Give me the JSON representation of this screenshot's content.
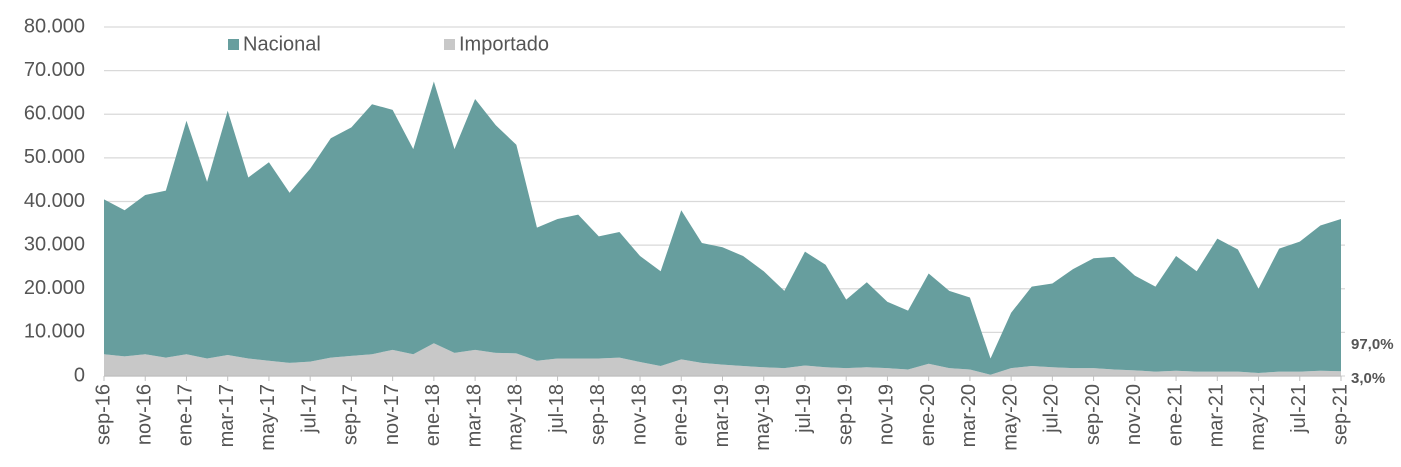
{
  "chart_data": {
    "type": "stacked_area",
    "categories": [
      "sep-16",
      null,
      "nov-16",
      null,
      "ene-17",
      null,
      "mar-17",
      null,
      "may-17",
      null,
      "jul-17",
      null,
      "sep-17",
      null,
      "nov-17",
      null,
      "ene-18",
      null,
      "mar-18",
      null,
      "may-18",
      null,
      "jul-18",
      null,
      "sep-18",
      null,
      "nov-18",
      null,
      "ene-19",
      null,
      "mar-19",
      null,
      "may-19",
      null,
      "jul-19",
      null,
      "sep-19",
      null,
      "nov-19",
      null,
      "ene-20",
      null,
      "mar-20",
      null,
      "may-20",
      null,
      "jul-20",
      null,
      "sep-20",
      null,
      "nov-20",
      null,
      "ene-21",
      null,
      "mar-21",
      null,
      "may-21",
      null,
      "jul-21",
      null,
      "sep-21"
    ],
    "series": [
      {
        "name": "Nacional",
        "color": "#679e9e",
        "end_label": "97,0%",
        "values": [
          35500,
          33500,
          36500,
          38300,
          53500,
          40500,
          56000,
          41500,
          45500,
          39000,
          44200,
          50300,
          52400,
          57300,
          55000,
          47000,
          60000,
          46700,
          57500,
          52200,
          47800,
          30500,
          32000,
          33000,
          28000,
          28800,
          24300,
          21700,
          34200,
          27500,
          26900,
          25200,
          22000,
          17700,
          26100,
          23500,
          15700,
          19500,
          15200,
          13500,
          20700,
          17700,
          16500,
          3700,
          12700,
          18200,
          19200,
          22700,
          25200,
          25800,
          21700,
          19500,
          26300,
          23000,
          30500,
          28000,
          19300,
          28200,
          29800,
          33300,
          34900
        ]
      },
      {
        "name": "Importado",
        "color": "#c8c8c8",
        "end_label": "3,0%",
        "values": [
          5000,
          4500,
          5000,
          4200,
          5000,
          4000,
          4800,
          4000,
          3500,
          3000,
          3300,
          4200,
          4600,
          5000,
          6000,
          5000,
          7500,
          5300,
          6000,
          5300,
          5200,
          3500,
          4000,
          4000,
          4000,
          4200,
          3200,
          2300,
          3800,
          3000,
          2600,
          2300,
          2000,
          1800,
          2400,
          2000,
          1800,
          2000,
          1800,
          1500,
          2800,
          1800,
          1500,
          300,
          1800,
          2300,
          2000,
          1800,
          1800,
          1500,
          1300,
          1000,
          1200,
          1000,
          1000,
          1000,
          700,
          1000,
          1000,
          1200,
          1100
        ]
      }
    ],
    "ylim": [
      0,
      80000
    ],
    "yticks": [
      0,
      {
        "value": 10000,
        "label": "10.000"
      },
      {
        "value": 20000,
        "label": "20.000"
      },
      {
        "value": 30000,
        "label": "30.000"
      },
      {
        "value": 40000,
        "label": "40.000"
      },
      {
        "value": 50000,
        "label": "50.000"
      },
      {
        "value": 60000,
        "label": "60.000"
      },
      {
        "value": 70000,
        "label": "70.000"
      },
      {
        "value": 80000,
        "label": "80.000"
      }
    ],
    "grid": true
  }
}
